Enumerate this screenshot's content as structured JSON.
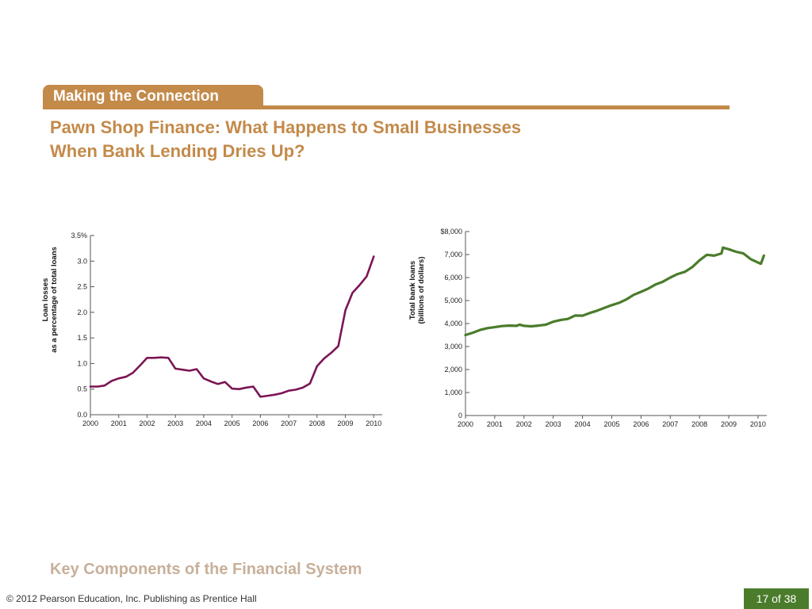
{
  "header": {
    "banner_label": "Making the Connection",
    "title_line1": "Pawn Shop Finance: What Happens to Small Businesses",
    "title_line2": "When Bank Lending Dries Up?"
  },
  "footer": {
    "section_title": "Key Components of the Financial System",
    "copyright": "© 2012 Pearson Education, Inc. Publishing as Prentice Hall",
    "page": "17 of 38"
  },
  "colors": {
    "accent": "#c38a4a",
    "left_series": "#7b1555",
    "right_series": "#4a7c2b",
    "badge": "#4a7c2b"
  },
  "chart_data": [
    {
      "type": "line",
      "ylabel_line1": "Loan losses",
      "ylabel_line2": "as a percentage of total loans",
      "xlabel": "",
      "xlim": [
        2000,
        2010.3
      ],
      "ylim": [
        0,
        3.5
      ],
      "x_ticks": [
        "2000",
        "2001",
        "2002",
        "2003",
        "2004",
        "2005",
        "2006",
        "2007",
        "2008",
        "2009",
        "2010"
      ],
      "y_ticks": [
        {
          "value": 0,
          "label": "0.0"
        },
        {
          "value": 0.5,
          "label": "0.5"
        },
        {
          "value": 1.0,
          "label": "1.0"
        },
        {
          "value": 1.5,
          "label": "1.5"
        },
        {
          "value": 2.0,
          "label": "2.0"
        },
        {
          "value": 2.5,
          "label": "2.5"
        },
        {
          "value": 3.0,
          "label": "3.0"
        },
        {
          "value": 3.5,
          "label": "3.5%"
        }
      ],
      "series": [
        {
          "color": "#7b1555",
          "x": [
            2000.0,
            2000.25,
            2000.5,
            2000.75,
            2001.0,
            2001.25,
            2001.5,
            2001.75,
            2002.0,
            2002.25,
            2002.5,
            2002.75,
            2003.0,
            2003.25,
            2003.5,
            2003.75,
            2004.0,
            2004.25,
            2004.5,
            2004.75,
            2005.0,
            2005.25,
            2005.5,
            2005.75,
            2006.0,
            2006.25,
            2006.5,
            2006.75,
            2007.0,
            2007.25,
            2007.5,
            2007.75,
            2008.0,
            2008.25,
            2008.5,
            2008.75,
            2009.0,
            2009.25,
            2009.5,
            2009.75,
            2010.0
          ],
          "values": [
            0.55,
            0.55,
            0.57,
            0.66,
            0.71,
            0.74,
            0.82,
            0.96,
            1.11,
            1.11,
            1.12,
            1.11,
            0.9,
            0.88,
            0.86,
            0.89,
            0.71,
            0.65,
            0.6,
            0.64,
            0.51,
            0.5,
            0.53,
            0.55,
            0.35,
            0.37,
            0.39,
            0.42,
            0.47,
            0.49,
            0.53,
            0.61,
            0.95,
            1.1,
            1.21,
            1.34,
            2.04,
            2.38,
            2.53,
            2.7,
            3.09
          ]
        }
      ]
    },
    {
      "type": "line",
      "ylabel_line1": "Total bank loans",
      "ylabel_line2": "(billions of dollars)",
      "xlabel": "",
      "xlim": [
        2000,
        2010.3
      ],
      "ylim": [
        0,
        8000
      ],
      "x_ticks": [
        "2000",
        "2001",
        "2002",
        "2003",
        "2004",
        "2005",
        "2006",
        "2007",
        "2008",
        "2009",
        "2010"
      ],
      "y_ticks": [
        {
          "value": 0,
          "label": "0"
        },
        {
          "value": 1000,
          "label": "1,000"
        },
        {
          "value": 2000,
          "label": "2,000"
        },
        {
          "value": 3000,
          "label": "3,000"
        },
        {
          "value": 4000,
          "label": "4,000"
        },
        {
          "value": 5000,
          "label": "5,000"
        },
        {
          "value": 6000,
          "label": "6,000"
        },
        {
          "value": 7000,
          "label": "7,000"
        },
        {
          "value": 8000,
          "label": "$8,000"
        }
      ],
      "series": [
        {
          "color": "#4a7c2b",
          "x": [
            2000.0,
            2000.25,
            2000.5,
            2000.75,
            2001.0,
            2001.25,
            2001.5,
            2001.75,
            2001.85,
            2002.0,
            2002.25,
            2002.5,
            2002.75,
            2003.0,
            2003.25,
            2003.5,
            2003.75,
            2004.0,
            2004.25,
            2004.5,
            2004.75,
            2005.0,
            2005.25,
            2005.5,
            2005.75,
            2006.0,
            2006.25,
            2006.5,
            2006.75,
            2007.0,
            2007.25,
            2007.5,
            2007.75,
            2008.0,
            2008.25,
            2008.5,
            2008.75,
            2008.8,
            2009.0,
            2009.25,
            2009.5,
            2009.75,
            2010.0,
            2010.1,
            2010.2
          ],
          "values": [
            3500,
            3600,
            3720,
            3800,
            3840,
            3890,
            3910,
            3900,
            3950,
            3900,
            3880,
            3910,
            3950,
            4080,
            4150,
            4200,
            4350,
            4340,
            4460,
            4560,
            4680,
            4800,
            4900,
            5050,
            5250,
            5380,
            5520,
            5700,
            5820,
            6000,
            6150,
            6250,
            6450,
            6750,
            6990,
            6950,
            7050,
            7300,
            7230,
            7120,
            7050,
            6800,
            6650,
            6600,
            6950
          ]
        }
      ]
    }
  ]
}
